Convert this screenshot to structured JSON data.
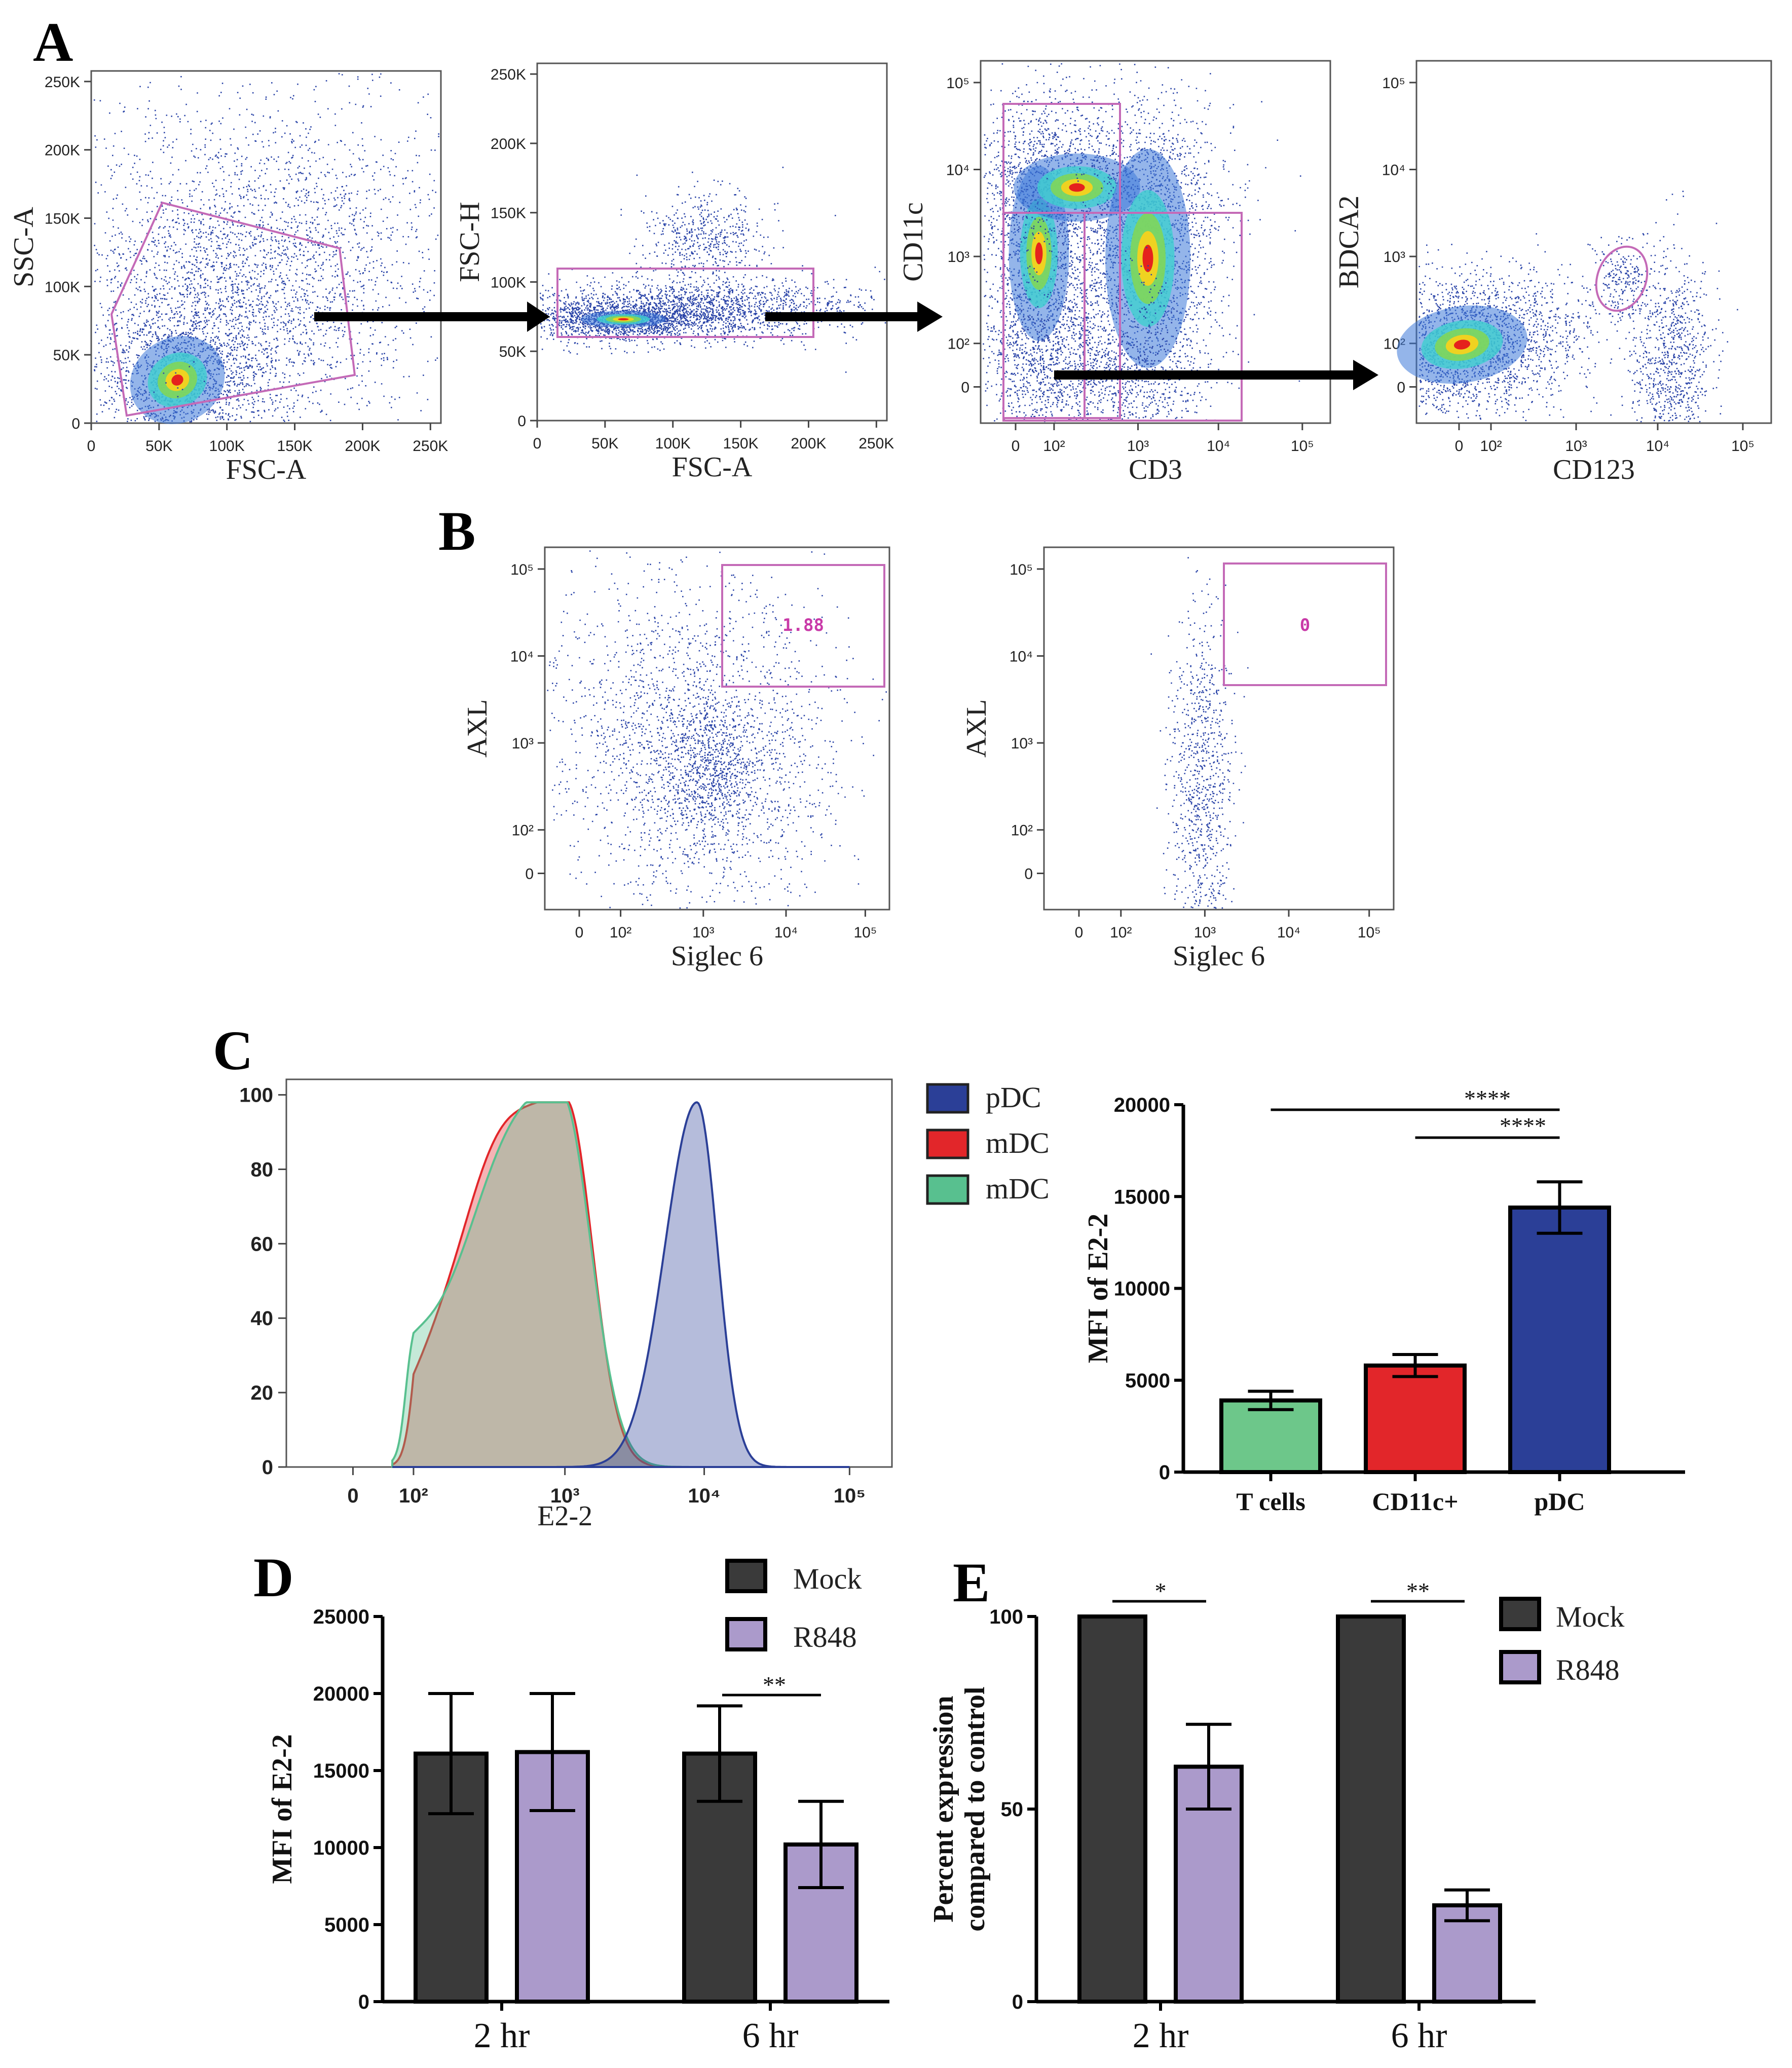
{
  "panels": {
    "A": {
      "letter": "A",
      "plots": [
        {
          "xlabel": "FSC-A",
          "ylabel": "SSC-A",
          "xticks": [
            "0",
            "50K",
            "100K",
            "150K",
            "200K",
            "250K"
          ],
          "yticks": [
            "0",
            "50K",
            "100K",
            "150K",
            "200K",
            "250K"
          ]
        },
        {
          "xlabel": "FSC-A",
          "ylabel": "FSC-H",
          "xticks": [
            "0",
            "50K",
            "100K",
            "150K",
            "200K",
            "250K"
          ],
          "yticks": [
            "0",
            "50K",
            "100K",
            "150K",
            "200K",
            "250K"
          ]
        },
        {
          "xlabel": "CD3",
          "ylabel": "CD11c",
          "xticks": [
            "0",
            "10²",
            "10³",
            "10⁴",
            "10⁵"
          ],
          "yticks": [
            "0",
            "10²",
            "10³",
            "10⁴",
            "10⁵"
          ]
        },
        {
          "xlabel": "CD123",
          "ylabel": "BDCA2",
          "xticks": [
            "0",
            "10²",
            "10³",
            "10⁴",
            "10⁵"
          ],
          "yticks": [
            "0",
            "10²",
            "10³",
            "10⁴",
            "10⁵"
          ]
        }
      ]
    },
    "B": {
      "letter": "B",
      "plots": [
        {
          "xlabel": "Siglec 6",
          "ylabel": "AXL",
          "gate_value": "1.88",
          "xticks": [
            "0",
            "10²",
            "10³",
            "10⁴",
            "10⁵"
          ],
          "yticks": [
            "0",
            "10²",
            "10³",
            "10⁴",
            "10⁵"
          ]
        },
        {
          "xlabel": "Siglec 6",
          "ylabel": "AXL",
          "gate_value": "0",
          "xticks": [
            "0",
            "10²",
            "10³",
            "10⁴",
            "10⁵"
          ],
          "yticks": [
            "0",
            "10²",
            "10³",
            "10⁴",
            "10⁵"
          ]
        }
      ]
    },
    "C": {
      "letter": "C"
    },
    "D": {
      "letter": "D"
    },
    "E": {
      "letter": "E"
    }
  },
  "chart_data": [
    {
      "id": "C-histogram",
      "type": "area",
      "xlabel": "E2-2",
      "xticks": [
        "0",
        "10²",
        "10³",
        "10⁴",
        "10⁵"
      ],
      "yticks": [
        "0",
        "20",
        "40",
        "60",
        "80",
        "100"
      ],
      "ylim": [
        0,
        100
      ],
      "legend": [
        "pDC",
        "mDC",
        "mDC"
      ],
      "legend_colors": [
        "#2b3f97",
        "#e2262a",
        "#58c08f"
      ],
      "series": [
        {
          "name": "pDC",
          "peak_log10_x": 3.95,
          "peak_y": 98,
          "color": "#2b3f97"
        },
        {
          "name": "mDC",
          "peak_log10_x": 3.05,
          "peak_y": 98,
          "color": "#e2262a"
        },
        {
          "name": "mDC",
          "peak_log10_x": 3.02,
          "peak_y": 98,
          "color": "#58c08f"
        }
      ]
    },
    {
      "id": "C-bar",
      "type": "bar",
      "ylabel": "MFI of E2-2",
      "categories": [
        "T cells",
        "CD11c+",
        "pDC"
      ],
      "values": [
        3900,
        5800,
        14400
      ],
      "errors": [
        500,
        600,
        1400
      ],
      "colors": [
        "#6dc78a",
        "#e2262a",
        "#2b3f97"
      ],
      "ylim": [
        0,
        20000
      ],
      "yticks": [
        "0",
        "5000",
        "10000",
        "15000",
        "20000"
      ],
      "significance": [
        "****",
        "****"
      ]
    },
    {
      "id": "D-bar",
      "type": "bar",
      "ylabel": "MFI of E2-2",
      "categories": [
        "2 hr",
        "6 hr"
      ],
      "series": [
        {
          "name": "Mock",
          "values": [
            16100,
            16100
          ],
          "errors": [
            3900,
            3100
          ],
          "color": "#3a3a3a"
        },
        {
          "name": "R848",
          "values": [
            16200,
            10200
          ],
          "errors": [
            3800,
            2800
          ],
          "color": "#ab9acb"
        }
      ],
      "ylim": [
        0,
        25000
      ],
      "yticks": [
        "0",
        "5000",
        "10000",
        "15000",
        "20000",
        "25000"
      ],
      "significance": [
        "**"
      ]
    },
    {
      "id": "E-bar",
      "type": "bar",
      "ylabel": [
        "Percent expression",
        "compared to control"
      ],
      "categories": [
        "2 hr",
        "6 hr"
      ],
      "series": [
        {
          "name": "Mock",
          "values": [
            100,
            100
          ],
          "errors": [
            0,
            0
          ],
          "color": "#3a3a3a"
        },
        {
          "name": "R848",
          "values": [
            61,
            25
          ],
          "errors": [
            11,
            4
          ],
          "color": "#ab9acb"
        }
      ],
      "ylim": [
        0,
        100
      ],
      "yticks": [
        "0",
        "50",
        "100"
      ],
      "significance": [
        "*",
        "**"
      ]
    }
  ]
}
